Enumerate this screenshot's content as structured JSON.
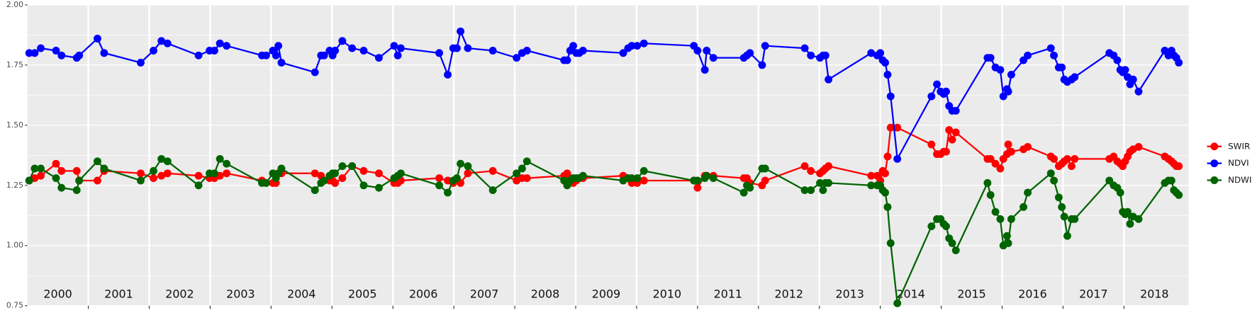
{
  "chart_data": {
    "type": "line",
    "x": [
      2000.03,
      2000.12,
      2000.22,
      2000.47,
      2000.56,
      2000.81,
      2000.85,
      2001.15,
      2001.26,
      2001.86,
      2002.07,
      2002.2,
      2002.3,
      2002.81,
      2002.99,
      2003.07,
      2003.16,
      2003.27,
      2003.85,
      2003.92,
      2004.03,
      2004.08,
      2004.12,
      2004.17,
      2004.72,
      2004.82,
      2004.87,
      2004.96,
      2005.01,
      2005.05,
      2005.17,
      2005.33,
      2005.52,
      2005.77,
      2006.02,
      2006.08,
      2006.13,
      2006.76,
      2006.9,
      2006.99,
      2007.05,
      2007.11,
      2007.23,
      2007.64,
      2008.03,
      2008.12,
      2008.2,
      2008.81,
      2008.86,
      2008.91,
      2008.96,
      2009.01,
      2009.06,
      2009.12,
      2009.78,
      2009.86,
      2009.92,
      2010.01,
      2010.12,
      2010.94,
      2011.0,
      2011.12,
      2011.15,
      2011.26,
      2011.76,
      2011.81,
      2011.86,
      2012.06,
      2012.11,
      2012.76,
      2012.86,
      2013.01,
      2013.06,
      2013.1,
      2013.15,
      2013.85,
      2013.95,
      2014.0,
      2014.04,
      2014.08,
      2014.12,
      2014.17,
      2014.28,
      2014.84,
      2014.93,
      2014.99,
      2015.04,
      2015.08,
      2015.13,
      2015.18,
      2015.24,
      2015.76,
      2015.81,
      2015.89,
      2015.97,
      2016.02,
      2016.08,
      2016.1,
      2016.15,
      2016.35,
      2016.42,
      2016.8,
      2016.85,
      2016.93,
      2016.98,
      2017.02,
      2017.07,
      2017.14,
      2017.19,
      2017.76,
      2017.83,
      2017.89,
      2017.94,
      2017.98,
      2018.02,
      2018.06,
      2018.1,
      2018.15,
      2018.24,
      2018.67,
      2018.73,
      2018.78,
      2018.82,
      2018.86,
      2018.9
    ],
    "series": [
      {
        "name": "SWIR",
        "color": "#ff0000",
        "values": [
          1.27,
          1.28,
          1.29,
          1.34,
          1.31,
          1.31,
          1.27,
          1.27,
          1.31,
          1.3,
          1.28,
          1.29,
          1.3,
          1.29,
          1.28,
          1.28,
          1.29,
          1.3,
          1.27,
          1.26,
          1.26,
          1.26,
          1.3,
          1.3,
          1.3,
          1.29,
          1.27,
          1.27,
          1.27,
          1.26,
          1.28,
          1.33,
          1.31,
          1.3,
          1.26,
          1.26,
          1.27,
          1.28,
          1.27,
          1.26,
          1.27,
          1.26,
          1.3,
          1.31,
          1.27,
          1.28,
          1.28,
          1.29,
          1.3,
          1.28,
          1.26,
          1.27,
          1.28,
          1.28,
          1.29,
          1.28,
          1.26,
          1.26,
          1.27,
          1.27,
          1.24,
          1.29,
          1.29,
          1.29,
          1.28,
          1.28,
          1.26,
          1.25,
          1.27,
          1.33,
          1.31,
          1.3,
          1.31,
          1.32,
          1.33,
          1.29,
          1.29,
          1.27,
          1.31,
          1.3,
          1.37,
          1.49,
          1.49,
          1.42,
          1.38,
          1.38,
          1.39,
          1.39,
          1.48,
          1.44,
          1.47,
          1.36,
          1.36,
          1.34,
          1.32,
          1.36,
          1.38,
          1.42,
          1.39,
          1.4,
          1.41,
          1.37,
          1.36,
          1.33,
          1.34,
          1.35,
          1.36,
          1.33,
          1.36,
          1.36,
          1.37,
          1.35,
          1.34,
          1.33,
          1.35,
          1.37,
          1.39,
          1.4,
          1.41,
          1.37,
          1.36,
          1.35,
          1.34,
          1.33,
          1.33
        ]
      },
      {
        "name": "NDVI",
        "color": "#0000ff",
        "values": [
          1.8,
          1.8,
          1.82,
          1.81,
          1.79,
          1.78,
          1.79,
          1.86,
          1.8,
          1.76,
          1.81,
          1.85,
          1.84,
          1.79,
          1.81,
          1.81,
          1.84,
          1.83,
          1.79,
          1.79,
          1.81,
          1.79,
          1.83,
          1.76,
          1.72,
          1.79,
          1.79,
          1.81,
          1.79,
          1.81,
          1.85,
          1.82,
          1.81,
          1.78,
          1.83,
          1.79,
          1.82,
          1.8,
          1.71,
          1.82,
          1.82,
          1.89,
          1.82,
          1.81,
          1.78,
          1.8,
          1.81,
          1.77,
          1.77,
          1.81,
          1.83,
          1.8,
          1.8,
          1.81,
          1.8,
          1.82,
          1.83,
          1.83,
          1.84,
          1.83,
          1.81,
          1.73,
          1.81,
          1.78,
          1.78,
          1.79,
          1.8,
          1.75,
          1.83,
          1.82,
          1.79,
          1.78,
          1.79,
          1.79,
          1.69,
          1.8,
          1.79,
          1.8,
          1.77,
          1.76,
          1.71,
          1.62,
          1.36,
          1.62,
          1.67,
          1.64,
          1.63,
          1.64,
          1.58,
          1.56,
          1.56,
          1.78,
          1.78,
          1.74,
          1.73,
          1.62,
          1.65,
          1.64,
          1.71,
          1.77,
          1.79,
          1.82,
          1.79,
          1.74,
          1.74,
          1.69,
          1.68,
          1.69,
          1.7,
          1.8,
          1.79,
          1.77,
          1.73,
          1.72,
          1.73,
          1.7,
          1.67,
          1.69,
          1.64,
          1.81,
          1.79,
          1.81,
          1.79,
          1.78,
          1.76
        ]
      },
      {
        "name": "NDWI",
        "color": "#006400",
        "values": [
          1.27,
          1.32,
          1.32,
          1.28,
          1.24,
          1.23,
          1.27,
          1.35,
          1.32,
          1.27,
          1.31,
          1.36,
          1.35,
          1.25,
          1.3,
          1.3,
          1.36,
          1.34,
          1.26,
          1.26,
          1.3,
          1.28,
          1.3,
          1.32,
          1.23,
          1.26,
          1.27,
          1.29,
          1.3,
          1.3,
          1.33,
          1.33,
          1.25,
          1.24,
          1.28,
          1.29,
          1.3,
          1.25,
          1.22,
          1.27,
          1.28,
          1.34,
          1.33,
          1.23,
          1.3,
          1.32,
          1.35,
          1.27,
          1.25,
          1.27,
          1.28,
          1.28,
          1.28,
          1.29,
          1.27,
          1.28,
          1.28,
          1.28,
          1.31,
          1.27,
          1.27,
          1.28,
          1.29,
          1.28,
          1.22,
          1.25,
          1.24,
          1.32,
          1.32,
          1.23,
          1.23,
          1.26,
          1.23,
          1.26,
          1.26,
          1.25,
          1.25,
          1.25,
          1.23,
          1.22,
          1.16,
          1.01,
          0.76,
          1.08,
          1.11,
          1.11,
          1.09,
          1.08,
          1.03,
          1.01,
          0.98,
          1.26,
          1.21,
          1.14,
          1.11,
          1.0,
          1.04,
          1.01,
          1.11,
          1.16,
          1.22,
          1.3,
          1.27,
          1.2,
          1.16,
          1.12,
          1.04,
          1.11,
          1.11,
          1.27,
          1.25,
          1.24,
          1.22,
          1.14,
          1.13,
          1.14,
          1.09,
          1.12,
          1.11,
          1.26,
          1.27,
          1.27,
          1.23,
          1.22,
          1.21
        ]
      }
    ],
    "xlim": [
      2000,
      2019.06
    ],
    "xticks": [
      {
        "value": 2000.5,
        "label": "2000"
      },
      {
        "value": 2001.5,
        "label": "2001"
      },
      {
        "value": 2002.5,
        "label": "2002"
      },
      {
        "value": 2003.5,
        "label": "2003"
      },
      {
        "value": 2004.5,
        "label": "2004"
      },
      {
        "value": 2005.5,
        "label": "2005"
      },
      {
        "value": 2006.5,
        "label": "2006"
      },
      {
        "value": 2007.5,
        "label": "2007"
      },
      {
        "value": 2008.5,
        "label": "2008"
      },
      {
        "value": 2009.5,
        "label": "2009"
      },
      {
        "value": 2010.5,
        "label": "2010"
      },
      {
        "value": 2011.5,
        "label": "2011"
      },
      {
        "value": 2012.5,
        "label": "2012"
      },
      {
        "value": 2013.5,
        "label": "2013"
      },
      {
        "value": 2014.5,
        "label": "2014"
      },
      {
        "value": 2015.5,
        "label": "2015"
      },
      {
        "value": 2016.5,
        "label": "2016"
      },
      {
        "value": 2017.5,
        "label": "2017"
      },
      {
        "value": 2018.5,
        "label": "2018"
      }
    ],
    "xgrid": [
      2001,
      2002,
      2003,
      2004,
      2005,
      2006,
      2007,
      2008,
      2009,
      2010,
      2011,
      2012,
      2013,
      2014,
      2015,
      2016,
      2017,
      2018
    ],
    "ylim": [
      0.75,
      2.0
    ],
    "yticks": [
      {
        "value": 0.75,
        "label": "0.75"
      },
      {
        "value": 1,
        "label": "1.00"
      },
      {
        "value": 1.25,
        "label": "1.25"
      },
      {
        "value": 1.5,
        "label": "1.50"
      },
      {
        "value": 1.75,
        "label": "1.75"
      },
      {
        "value": 2,
        "label": "2.00"
      }
    ],
    "grid": true,
    "legend": "right"
  }
}
